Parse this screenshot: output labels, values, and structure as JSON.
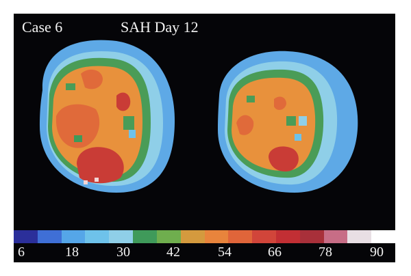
{
  "figure": {
    "case_label": "Case 6",
    "condition_label": "SAH Day 12"
  },
  "scale": {
    "ticks": [
      "6",
      "18",
      "30",
      "42",
      "54",
      "66",
      "78",
      "90"
    ],
    "colors": [
      "#2b2f9a",
      "#3f6fd6",
      "#55a6e8",
      "#6ec2ea",
      "#8fcfe8",
      "#3f9a5a",
      "#6fae4e",
      "#d49a3e",
      "#e8843c",
      "#e0653a",
      "#d1453a",
      "#c22f34",
      "#a8303a",
      "#c76d86",
      "#e8dfe4",
      "#ffffff"
    ]
  },
  "tissue_colors": {
    "background": "#050508",
    "outer_rim": "#5ea9e6",
    "inner_rim": "#8fcfe8",
    "green": "#4a9c57",
    "orange": "#e8913c",
    "red_orange": "#e06a3a",
    "red": "#c93c36",
    "white_spot": "#f2d6d6"
  }
}
